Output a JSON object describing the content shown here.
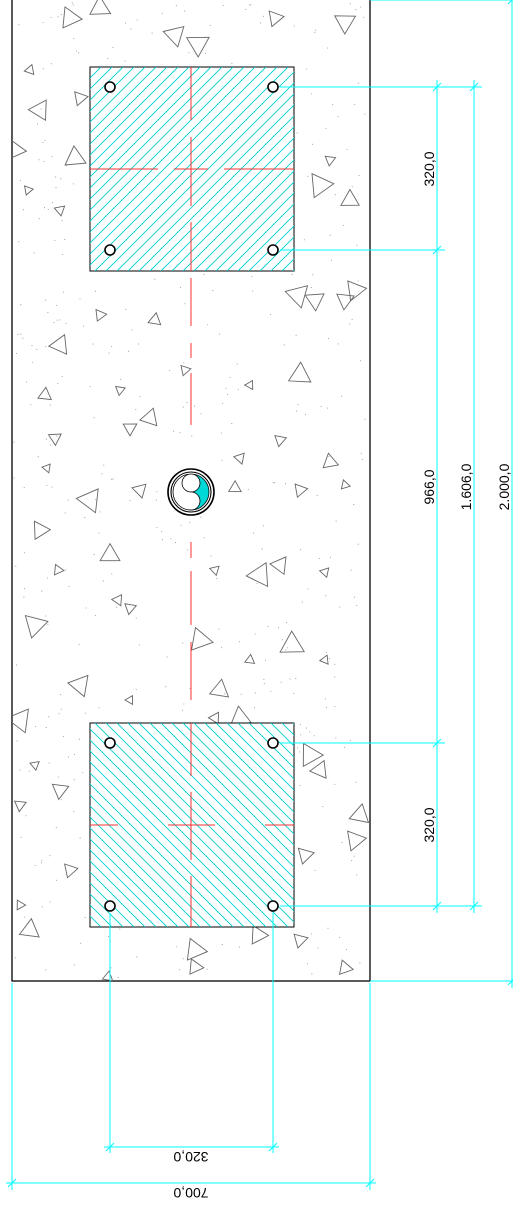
{
  "dimensions": {
    "top_plate_spacing": "320,0",
    "plate_gap": "966,0",
    "outer_bolt_span": "1.606,0",
    "total_length": "2.000,0",
    "bottom_plate_spacing": "320,0",
    "bottom_bolt_width": "320,0",
    "total_width": "700,0"
  },
  "colors": {
    "outline": "#000000",
    "dimension": "#00ffff",
    "hatch": "#00d8d8",
    "centerline": "#ff3030",
    "aggregate": "#777777"
  }
}
